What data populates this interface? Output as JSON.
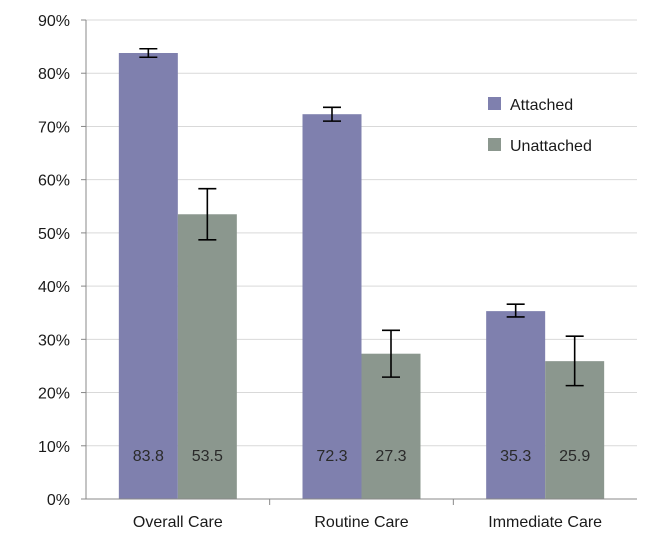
{
  "chart_data": {
    "type": "bar",
    "categories": [
      "Overall Care",
      "Routine Care",
      "Immediate Care"
    ],
    "series": [
      {
        "name": "Attached",
        "color": "#7f80ae",
        "values": [
          83.8,
          72.3,
          35.3
        ],
        "error_low": [
          83.0,
          71.0,
          34.2
        ],
        "error_high": [
          84.6,
          73.6,
          36.6
        ]
      },
      {
        "name": "Unattached",
        "color": "#8b978e",
        "values": [
          53.5,
          27.3,
          25.9
        ],
        "error_low": [
          48.7,
          22.9,
          21.3
        ],
        "error_high": [
          58.3,
          31.7,
          30.6
        ]
      }
    ],
    "data_labels": [
      [
        "83.8",
        "72.3",
        "35.3"
      ],
      [
        "53.5",
        "27.3",
        "25.9"
      ]
    ],
    "ylim": [
      0,
      90
    ],
    "yticks": [
      "0%",
      "10%",
      "20%",
      "30%",
      "40%",
      "50%",
      "60%",
      "70%",
      "80%",
      "90%"
    ],
    "grid": true,
    "gridline_color": "#d9d9d9",
    "legend_position": "top-right",
    "error_bars": true
  }
}
